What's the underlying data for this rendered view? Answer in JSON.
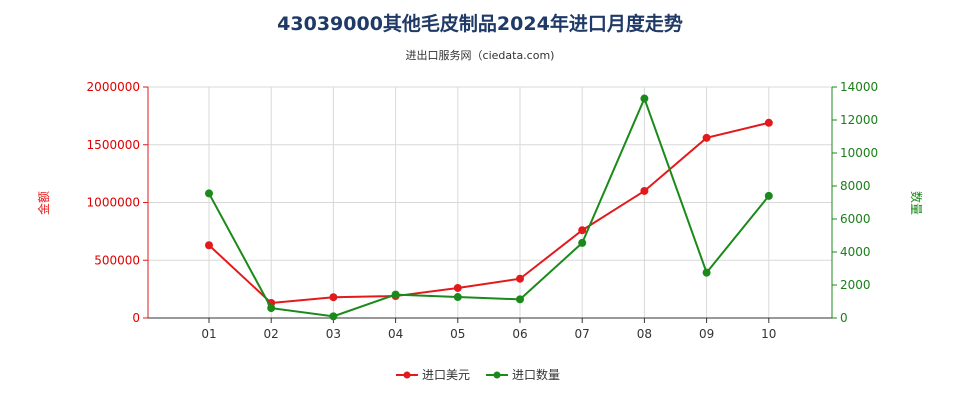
{
  "header": {
    "title": "43039000其他毛皮制品2024年进口月度走势",
    "subtitle": "进出口服务网（ciedata.com)"
  },
  "colors": {
    "amount": "#e31a1c",
    "quantity": "#1a8a1a",
    "title": "#1f3a66",
    "grid": "#d9d9d9"
  },
  "chart_data": {
    "type": "line",
    "categories": [
      "01",
      "02",
      "03",
      "04",
      "05",
      "06",
      "07",
      "08",
      "09",
      "10"
    ],
    "series": [
      {
        "name": "进口美元",
        "axis": "left",
        "values": [
          630000,
          130000,
          180000,
          190000,
          260000,
          340000,
          760000,
          1100000,
          1560000,
          1690000
        ]
      },
      {
        "name": "进口数量",
        "axis": "right",
        "values": [
          7550,
          600,
          100,
          1420,
          1270,
          1130,
          4550,
          13300,
          2750,
          7400
        ]
      }
    ],
    "ylabel_left": "金额",
    "ylabel_right": "数量",
    "ylim_left": [
      0,
      2000000
    ],
    "ylim_right": [
      0,
      14000
    ],
    "yticks_left": [
      "0",
      "500000",
      "1000000",
      "1500000",
      "2000000"
    ],
    "yticks_right": [
      "0",
      "2000",
      "4000",
      "6000",
      "8000",
      "10000",
      "12000",
      "14000"
    ],
    "grid": true,
    "legend_position": "bottom-center"
  }
}
